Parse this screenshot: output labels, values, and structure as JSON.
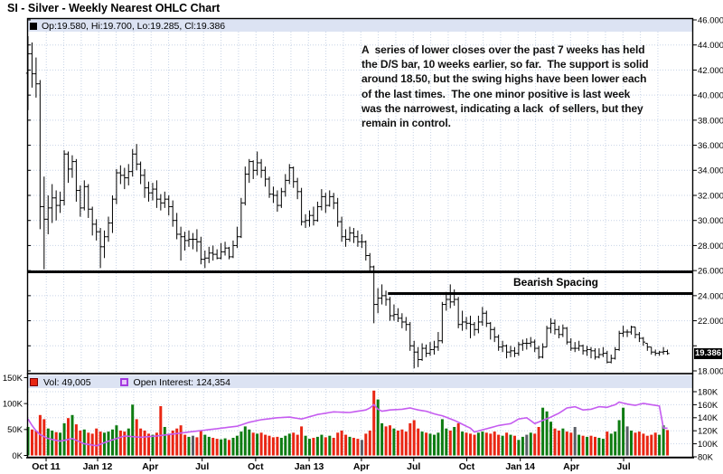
{
  "title": "SI - Silver - Weekly Nearest OHLC Chart",
  "price_legend": "Op:19.580, Hi:19.700, Lo:19.285, Cl:19.386",
  "annotation": {
    "lines": [
      "A  series of lower closes over the past 7 weeks has held",
      "the D/S bar, 10 weeks earlier, so far.  The support is solid",
      "around 18.50, but the swing highs have been lower each",
      "of the last times.  The one minor positive is last week",
      "was the narrowest, indicating a lack  of sellers, but they",
      "remain in control."
    ]
  },
  "bearish_spacing_label": "Bearish Spacing",
  "last_price_badge": "19.386",
  "volume_legend": {
    "vol_label": "Vol: 49,005",
    "oi_label": "Open Interest: 124,354"
  },
  "colors": {
    "up_bar": "#0e7c12",
    "down_bar": "#e92613",
    "flat_bar": "#5a5f66",
    "oi_line": "#c55cf0",
    "grid": "#c7d3e6",
    "strip_bg": "#dce3f3",
    "ohlc": "#000000",
    "support_line": "#000000",
    "badge_bg": "#000000"
  },
  "chart_data": {
    "type": "ohlc",
    "title": "SI - Silver - Weekly Nearest OHLC Chart",
    "interval": "weekly",
    "price_axis": {
      "min": 18,
      "max": 46,
      "tick_step": 2,
      "ticks": [
        {
          "v": 46,
          "label": "46.000"
        },
        {
          "v": 44,
          "label": "44.000"
        },
        {
          "v": 42,
          "label": "42.000"
        },
        {
          "v": 40,
          "label": "40.000"
        },
        {
          "v": 38,
          "label": "38.000"
        },
        {
          "v": 36,
          "label": "36.000"
        },
        {
          "v": 34,
          "label": "34.000"
        },
        {
          "v": 32,
          "label": "32.000"
        },
        {
          "v": 30,
          "label": "30.000"
        },
        {
          "v": 28,
          "label": "28.000"
        },
        {
          "v": 26,
          "label": "26.000"
        },
        {
          "v": 24,
          "label": "24.000"
        },
        {
          "v": 22,
          "label": "22.000"
        },
        {
          "v": 20,
          "label": ""
        },
        {
          "v": 18,
          "label": "18.000"
        }
      ]
    },
    "volume_axis_left": {
      "ticks": [
        {
          "v": 150,
          "label": "150K"
        },
        {
          "v": 100,
          "label": "100K"
        },
        {
          "v": 50,
          "label": "50K"
        },
        {
          "v": 0,
          "label": "0K"
        }
      ]
    },
    "oi_axis_right": {
      "ticks": [
        {
          "v": 180,
          "label": "180K"
        },
        {
          "v": 160,
          "label": "160K"
        },
        {
          "v": 140,
          "label": "140K"
        },
        {
          "v": 120,
          "label": "120K"
        },
        {
          "v": 100,
          "label": "100K"
        },
        {
          "v": 80,
          "label": "80K"
        }
      ]
    },
    "months": [
      {
        "label": "Oct 11",
        "bar": 4.5
      },
      {
        "label": "Jan 12",
        "bar": 17.3
      },
      {
        "label": "Apr",
        "bar": 30.4
      },
      {
        "label": "Jul",
        "bar": 43.3
      },
      {
        "label": "Oct",
        "bar": 56.6
      },
      {
        "label": "Jan 13",
        "bar": 69.9
      },
      {
        "label": "Apr",
        "bar": 82.9
      },
      {
        "label": "Jul",
        "bar": 95.9
      },
      {
        "label": "Oct",
        "bar": 109.1
      },
      {
        "label": "Jan 14",
        "bar": 122.4
      },
      {
        "label": "Apr",
        "bar": 135.1
      },
      {
        "label": "Jul",
        "bar": 148.1
      }
    ],
    "months_per_gridline": 4.345,
    "support_lines": [
      {
        "price": 25.9,
        "from_bar": -0.2,
        "full_width": true
      },
      {
        "price": 24.17,
        "from_bar": 89.5,
        "full_width": false
      }
    ],
    "last_bar_ohlc": {
      "open": 19.58,
      "high": 19.7,
      "low": 19.285,
      "close": 19.386
    },
    "last_volume": 49005,
    "last_open_interest": 124354,
    "bars_hlc": [
      [
        44.7,
        38.8,
        43.3
      ],
      [
        44.2,
        40.6,
        41.7
      ],
      [
        43.0,
        39.8,
        40.9
      ],
      [
        41.2,
        29.3,
        31.1
      ],
      [
        33.5,
        26.1,
        30.1
      ],
      [
        32.0,
        28.9,
        31.0
      ],
      [
        32.9,
        29.8,
        31.8
      ],
      [
        32.4,
        30.0,
        31.2
      ],
      [
        32.3,
        30.6,
        31.6
      ],
      [
        35.6,
        31.2,
        35.3
      ],
      [
        35.5,
        33.0,
        34.1
      ],
      [
        35.2,
        33.4,
        34.7
      ],
      [
        34.9,
        31.5,
        32.4
      ],
      [
        32.8,
        30.3,
        31.0
      ],
      [
        33.2,
        30.8,
        32.7
      ],
      [
        32.9,
        30.2,
        30.9
      ],
      [
        31.1,
        28.8,
        29.7
      ],
      [
        30.1,
        28.4,
        29.1
      ],
      [
        29.4,
        26.2,
        27.9
      ],
      [
        29.2,
        27.0,
        28.7
      ],
      [
        30.3,
        28.3,
        29.8
      ],
      [
        32.0,
        29.0,
        31.7
      ],
      [
        34.1,
        31.3,
        33.8
      ],
      [
        34.4,
        32.9,
        33.6
      ],
      [
        34.2,
        32.5,
        33.4
      ],
      [
        34.5,
        32.8,
        33.9
      ],
      [
        35.7,
        33.5,
        35.3
      ],
      [
        36.1,
        34.0,
        34.5
      ],
      [
        34.7,
        32.9,
        33.6
      ],
      [
        34.1,
        31.8,
        32.6
      ],
      [
        33.1,
        31.5,
        32.2
      ],
      [
        33.0,
        31.6,
        32.5
      ],
      [
        33.2,
        31.0,
        31.7
      ],
      [
        32.1,
        30.8,
        31.4
      ],
      [
        32.3,
        31.0,
        31.7
      ],
      [
        32.0,
        30.4,
        31.1
      ],
      [
        31.6,
        29.5,
        30.0
      ],
      [
        30.6,
        28.5,
        28.9
      ],
      [
        29.5,
        26.8,
        28.7
      ],
      [
        29.1,
        27.6,
        28.4
      ],
      [
        29.2,
        27.9,
        28.5
      ],
      [
        29.0,
        27.7,
        28.5
      ],
      [
        29.3,
        27.5,
        28.3
      ],
      [
        28.7,
        26.5,
        26.9
      ],
      [
        27.6,
        26.2,
        27.0
      ],
      [
        27.9,
        26.6,
        27.4
      ],
      [
        28.0,
        26.8,
        27.3
      ],
      [
        27.7,
        26.9,
        27.0
      ],
      [
        28.2,
        26.9,
        27.5
      ],
      [
        28.3,
        27.2,
        27.8
      ],
      [
        27.9,
        26.9,
        27.1
      ],
      [
        28.4,
        27.0,
        28.0
      ],
      [
        29.5,
        27.8,
        28.7
      ],
      [
        31.8,
        28.6,
        31.4
      ],
      [
        34.3,
        31.2,
        33.7
      ],
      [
        34.9,
        33.0,
        34.7
      ],
      [
        34.8,
        33.3,
        34.0
      ],
      [
        35.5,
        33.6,
        34.6
      ],
      [
        34.9,
        33.4,
        34.0
      ],
      [
        34.3,
        32.7,
        33.3
      ],
      [
        33.5,
        31.8,
        32.1
      ],
      [
        32.7,
        31.4,
        32.0
      ],
      [
        32.4,
        30.7,
        31.2
      ],
      [
        32.6,
        31.0,
        32.3
      ],
      [
        33.7,
        31.9,
        33.2
      ],
      [
        34.5,
        32.9,
        34.2
      ],
      [
        34.3,
        32.6,
        33.1
      ],
      [
        33.4,
        31.7,
        32.3
      ],
      [
        32.6,
        29.6,
        29.9
      ],
      [
        30.5,
        29.4,
        30.0
      ],
      [
        30.8,
        29.5,
        30.4
      ],
      [
        31.1,
        29.6,
        30.0
      ],
      [
        31.5,
        29.9,
        31.1
      ],
      [
        32.5,
        30.8,
        31.9
      ],
      [
        32.2,
        30.6,
        31.2
      ],
      [
        32.4,
        31.1,
        31.9
      ],
      [
        32.2,
        30.9,
        31.4
      ],
      [
        31.8,
        29.5,
        29.9
      ],
      [
        30.3,
        28.3,
        28.7
      ],
      [
        29.3,
        27.9,
        28.5
      ],
      [
        29.5,
        28.3,
        29.0
      ],
      [
        29.4,
        28.2,
        28.7
      ],
      [
        29.2,
        27.9,
        28.3
      ],
      [
        28.9,
        27.8,
        28.3
      ],
      [
        28.4,
        26.8,
        27.2
      ],
      [
        27.4,
        25.9,
        26.3
      ],
      [
        26.4,
        21.8,
        23.3
      ],
      [
        24.6,
        22.6,
        23.8
      ],
      [
        24.9,
        23.3,
        24.0
      ],
      [
        24.4,
        23.2,
        23.7
      ],
      [
        23.9,
        22.0,
        22.4
      ],
      [
        23.3,
        22.0,
        22.5
      ],
      [
        23.0,
        21.9,
        22.2
      ],
      [
        22.6,
        21.4,
        21.9
      ],
      [
        22.3,
        21.2,
        21.7
      ],
      [
        21.9,
        19.6,
        20.0
      ],
      [
        20.4,
        18.2,
        19.5
      ],
      [
        19.9,
        18.3,
        18.9
      ],
      [
        20.2,
        18.8,
        19.8
      ],
      [
        20.1,
        19.1,
        19.4
      ],
      [
        20.3,
        19.2,
        19.7
      ],
      [
        20.4,
        19.3,
        19.9
      ],
      [
        21.1,
        19.6,
        20.4
      ],
      [
        23.5,
        20.2,
        23.3
      ],
      [
        24.3,
        22.8,
        23.7
      ],
      [
        24.9,
        23.0,
        23.5
      ],
      [
        24.5,
        23.2,
        23.7
      ],
      [
        23.9,
        21.4,
        21.7
      ],
      [
        22.8,
        21.2,
        21.9
      ],
      [
        22.3,
        21.3,
        21.8
      ],
      [
        22.4,
        20.6,
        21.7
      ],
      [
        21.9,
        20.8,
        21.3
      ],
      [
        22.4,
        21.0,
        21.9
      ],
      [
        23.1,
        21.6,
        22.6
      ],
      [
        22.8,
        21.5,
        21.8
      ],
      [
        21.9,
        20.5,
        21.3
      ],
      [
        21.5,
        20.3,
        20.7
      ],
      [
        20.9,
        19.6,
        19.9
      ],
      [
        20.4,
        19.5,
        20.0
      ],
      [
        20.1,
        19.0,
        19.5
      ],
      [
        20.0,
        19.1,
        19.6
      ],
      [
        19.9,
        19.1,
        19.4
      ],
      [
        20.3,
        19.2,
        20.1
      ],
      [
        20.5,
        19.6,
        20.2
      ],
      [
        20.6,
        19.7,
        20.2
      ],
      [
        20.7,
        19.9,
        20.3
      ],
      [
        20.5,
        19.5,
        19.8
      ],
      [
        20.0,
        18.95,
        19.1
      ],
      [
        20.2,
        19.0,
        19.9
      ],
      [
        21.6,
        19.9,
        21.4
      ],
      [
        22.2,
        21.0,
        21.8
      ],
      [
        22.1,
        20.9,
        21.3
      ],
      [
        21.6,
        20.6,
        20.9
      ],
      [
        21.7,
        20.7,
        21.4
      ],
      [
        21.5,
        20.1,
        20.3
      ],
      [
        20.6,
        19.6,
        19.8
      ],
      [
        20.3,
        19.5,
        19.8
      ],
      [
        20.4,
        19.6,
        20.0
      ],
      [
        20.1,
        19.3,
        19.6
      ],
      [
        20.0,
        19.2,
        19.7
      ],
      [
        19.9,
        19.0,
        19.6
      ],
      [
        19.8,
        18.9,
        19.1
      ],
      [
        19.8,
        19.0,
        19.3
      ],
      [
        19.9,
        19.1,
        19.4
      ],
      [
        19.6,
        18.6,
        18.7
      ],
      [
        19.3,
        18.6,
        19.0
      ],
      [
        19.9,
        18.9,
        19.7
      ],
      [
        21.2,
        19.6,
        21.0
      ],
      [
        21.6,
        20.7,
        21.1
      ],
      [
        21.3,
        20.7,
        21.1
      ],
      [
        21.6,
        20.9,
        21.5
      ],
      [
        21.5,
        20.6,
        20.9
      ],
      [
        21.1,
        20.3,
        20.6
      ],
      [
        20.7,
        20.0,
        20.3
      ],
      [
        20.2,
        19.6,
        19.9
      ],
      [
        19.9,
        19.3,
        19.5
      ],
      [
        19.7,
        19.2,
        19.4
      ],
      [
        19.6,
        19.2,
        19.5
      ],
      [
        19.9,
        19.3,
        19.55
      ],
      [
        19.7,
        19.285,
        19.386
      ]
    ],
    "volumes_k": [
      55,
      50,
      48,
      78,
      70,
      52,
      48,
      45,
      44,
      62,
      72,
      78,
      60,
      48,
      50,
      44,
      42,
      52,
      46,
      44,
      46,
      50,
      58,
      48,
      46,
      52,
      98,
      70,
      52,
      48,
      42,
      40,
      44,
      95,
      55,
      42,
      48,
      52,
      58,
      40,
      36,
      38,
      35,
      48,
      40,
      36,
      34,
      32,
      31,
      33,
      30,
      34,
      38,
      46,
      56,
      50,
      44,
      42,
      44,
      40,
      38,
      35,
      36,
      34,
      38,
      42,
      44,
      40,
      56,
      38,
      32,
      34,
      36,
      40,
      35,
      38,
      34,
      44,
      48,
      40,
      36,
      34,
      32,
      30,
      42,
      48,
      125,
      108,
      62,
      56,
      58,
      52,
      48,
      50,
      46,
      62,
      68,
      52,
      46,
      44,
      42,
      40,
      44,
      70,
      52,
      48,
      55,
      62,
      46,
      44,
      42,
      40,
      44,
      46,
      44,
      42,
      46,
      40,
      38,
      44,
      40,
      38,
      30,
      36,
      40,
      44,
      42,
      55,
      92,
      85,
      65,
      52,
      48,
      52,
      46,
      44,
      55,
      40,
      38,
      36,
      38,
      36,
      34,
      32,
      46,
      42,
      46,
      68,
      92,
      56,
      48,
      44,
      46,
      42,
      38,
      40,
      44,
      40,
      58,
      49
    ],
    "open_interest_points_k": [
      [
        0,
        138
      ],
      [
        1,
        128
      ],
      [
        2,
        120
      ],
      [
        3,
        114
      ],
      [
        5,
        108
      ],
      [
        8,
        104
      ],
      [
        11,
        108
      ],
      [
        14,
        100
      ],
      [
        17,
        97
      ],
      [
        20,
        104
      ],
      [
        24,
        112
      ],
      [
        28,
        110
      ],
      [
        32,
        112
      ],
      [
        36,
        115
      ],
      [
        40,
        118
      ],
      [
        44,
        121
      ],
      [
        48,
        124
      ],
      [
        52,
        127
      ],
      [
        55,
        133
      ],
      [
        58,
        137
      ],
      [
        62,
        140
      ],
      [
        65,
        141
      ],
      [
        68,
        138
      ],
      [
        72,
        145
      ],
      [
        76,
        149
      ],
      [
        80,
        148
      ],
      [
        84,
        152
      ],
      [
        85,
        155
      ],
      [
        86,
        160
      ],
      [
        87,
        153
      ],
      [
        88,
        150
      ],
      [
        90,
        152
      ],
      [
        93,
        153
      ],
      [
        95,
        155
      ],
      [
        97,
        152
      ],
      [
        99,
        150
      ],
      [
        101,
        146
      ],
      [
        103,
        143
      ],
      [
        106,
        136
      ],
      [
        108,
        130
      ],
      [
        110,
        124
      ],
      [
        111,
        118
      ],
      [
        114,
        123
      ],
      [
        117,
        128
      ],
      [
        120,
        131
      ],
      [
        122,
        138
      ],
      [
        124,
        140
      ],
      [
        126,
        131
      ],
      [
        128,
        136
      ],
      [
        130,
        141
      ],
      [
        132,
        147
      ],
      [
        134,
        155
      ],
      [
        136,
        157
      ],
      [
        138,
        152
      ],
      [
        140,
        153
      ],
      [
        142,
        157
      ],
      [
        144,
        156
      ],
      [
        146,
        160
      ],
      [
        147,
        164
      ],
      [
        149,
        161
      ],
      [
        151,
        159
      ],
      [
        153,
        162
      ],
      [
        155,
        160
      ],
      [
        157,
        158
      ],
      [
        158,
        124
      ]
    ]
  }
}
